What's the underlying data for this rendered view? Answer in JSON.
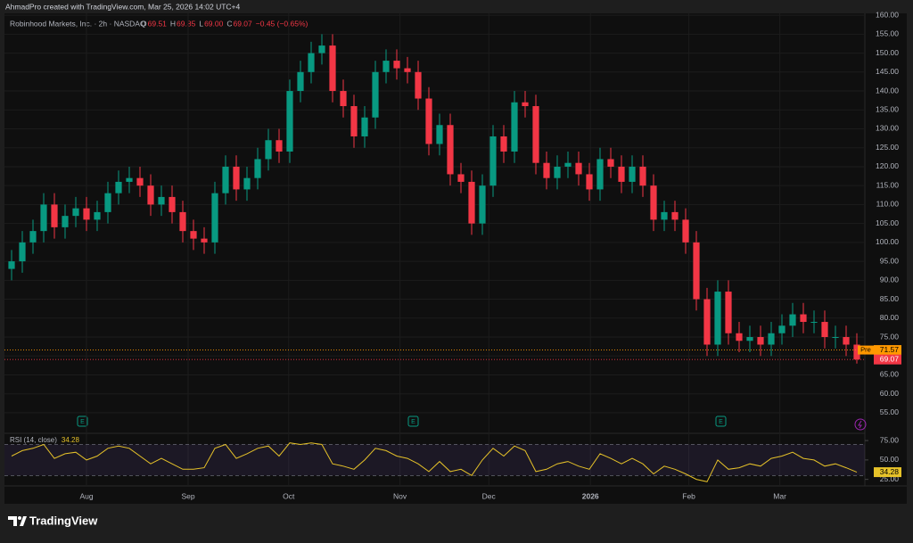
{
  "header": {
    "credit": "AhmadPro created with TradingView.com, Mar 25, 2026 14:02 UTC+4"
  },
  "chart_data": {
    "type": "candlestick",
    "legend": {
      "symbol": "Robinhood Markets, Inc. · 2h · NASDAQ",
      "labels": [
        "O",
        "H",
        "L",
        "C"
      ],
      "values": [
        "69.51",
        "69.85",
        "69.00",
        "69.07"
      ],
      "change": "−0.45 (−0.65%)"
    },
    "open": [
      93,
      95,
      100,
      103,
      110,
      104,
      107,
      109,
      106,
      108,
      113,
      116,
      117,
      115,
      110,
      112,
      108,
      103,
      101,
      100,
      113,
      120,
      114,
      117,
      122,
      127,
      124,
      140,
      145,
      150,
      152,
      140,
      136,
      128,
      133,
      145,
      148,
      146,
      145,
      138,
      126,
      131,
      118,
      116,
      105,
      115,
      128,
      124,
      137,
      136,
      121,
      117,
      120,
      121,
      118,
      114,
      122,
      120,
      116,
      120,
      115,
      106,
      108,
      106,
      100,
      85,
      73,
      87,
      76,
      74,
      75,
      73,
      76,
      78,
      81,
      79,
      79,
      75,
      75,
      73
    ],
    "high": [
      98,
      103,
      106,
      113,
      113,
      110,
      112,
      112,
      111,
      116,
      119,
      120,
      120,
      118,
      115,
      115,
      111,
      106,
      104,
      116,
      123,
      123,
      120,
      125,
      130,
      130,
      143,
      148,
      153,
      155,
      155,
      143,
      139,
      136,
      148,
      151,
      151,
      149,
      148,
      141,
      134,
      134,
      121,
      119,
      118,
      131,
      131,
      140,
      140,
      139,
      124,
      123,
      124,
      124,
      121,
      125,
      125,
      123,
      123,
      123,
      118,
      111,
      111,
      109,
      103,
      88,
      90,
      90,
      79,
      78,
      78,
      79,
      81,
      84,
      84,
      82,
      82,
      78,
      78,
      76
    ],
    "low": [
      90,
      92,
      97,
      100,
      101,
      101,
      104,
      103,
      103,
      105,
      110,
      113,
      112,
      107,
      107,
      105,
      100,
      98,
      97,
      97,
      110,
      111,
      111,
      114,
      119,
      121,
      121,
      137,
      142,
      147,
      137,
      133,
      125,
      125,
      130,
      142,
      143,
      142,
      135,
      123,
      123,
      115,
      113,
      102,
      102,
      112,
      121,
      121,
      133,
      118,
      114,
      114,
      117,
      115,
      111,
      111,
      117,
      113,
      113,
      112,
      103,
      103,
      103,
      97,
      82,
      70,
      70,
      73,
      71,
      71,
      70,
      70,
      73,
      75,
      76,
      76,
      72,
      72,
      70,
      68
    ],
    "close": [
      95,
      100,
      103,
      110,
      104,
      107,
      109,
      106,
      108,
      113,
      116,
      117,
      115,
      110,
      112,
      108,
      103,
      101,
      100,
      113,
      120,
      114,
      117,
      122,
      127,
      124,
      140,
      145,
      150,
      152,
      140,
      136,
      128,
      133,
      145,
      148,
      146,
      145,
      138,
      126,
      131,
      118,
      116,
      105,
      115,
      128,
      124,
      137,
      136,
      121,
      117,
      120,
      121,
      118,
      114,
      122,
      120,
      116,
      120,
      115,
      106,
      108,
      106,
      100,
      85,
      73,
      87,
      76,
      74,
      75,
      73,
      76,
      78,
      81,
      79,
      79,
      75,
      75,
      73,
      69.07
    ],
    "up_color": "#089981",
    "down_color": "#f23645",
    "xlim": [
      0,
      80
    ],
    "xticks": [
      {
        "value": 7.5,
        "label": "Aug"
      },
      {
        "value": 17,
        "label": "Sep"
      },
      {
        "value": 26.4,
        "label": "Oct"
      },
      {
        "value": 36.8,
        "label": "Nov"
      },
      {
        "value": 45.1,
        "label": "Dec"
      },
      {
        "value": 54.6,
        "label": "2026"
      },
      {
        "value": 63.8,
        "label": "Feb"
      },
      {
        "value": 72.3,
        "label": "Mar"
      }
    ],
    "ylim": [
      49.8,
      160.5
    ],
    "yticks": [
      {
        "value": 55,
        "label": "55.00"
      },
      {
        "value": 60,
        "label": "60.00"
      },
      {
        "value": 65,
        "label": "65.00"
      },
      {
        "value": 70,
        "label": "70.00"
      },
      {
        "value": 75,
        "label": "75.00"
      },
      {
        "value": 80,
        "label": "80.00"
      },
      {
        "value": 85,
        "label": "85.00"
      },
      {
        "value": 90,
        "label": "90.00"
      },
      {
        "value": 95,
        "label": "95.00"
      },
      {
        "value": 100,
        "label": "100.00"
      },
      {
        "value": 105,
        "label": "105.00"
      },
      {
        "value": 110,
        "label": "110.00"
      },
      {
        "value": 115,
        "label": "115.00"
      },
      {
        "value": 120,
        "label": "120.00"
      },
      {
        "value": 125,
        "label": "125.00"
      },
      {
        "value": 130,
        "label": "130.00"
      },
      {
        "value": 135,
        "label": "135.00"
      },
      {
        "value": 140,
        "label": "140.00"
      },
      {
        "value": 145,
        "label": "145.00"
      },
      {
        "value": 150,
        "label": "150.00"
      },
      {
        "value": 155,
        "label": "155.00"
      },
      {
        "value": 160,
        "label": "160.00"
      }
    ],
    "grid": true,
    "pre_market": {
      "label": "Pre",
      "value": 71.57,
      "color": "#ff9800"
    },
    "last_price": 69.07,
    "rsi": {
      "label": "RSI (14, close)",
      "color": "#e6c229",
      "values": [
        55,
        62,
        65,
        70,
        52,
        58,
        60,
        50,
        55,
        65,
        68,
        65,
        55,
        45,
        52,
        45,
        38,
        38,
        40,
        65,
        70,
        52,
        58,
        65,
        68,
        55,
        72,
        70,
        72,
        70,
        45,
        42,
        38,
        50,
        65,
        62,
        55,
        52,
        45,
        35,
        48,
        35,
        38,
        30,
        50,
        65,
        55,
        68,
        62,
        35,
        38,
        45,
        48,
        42,
        38,
        58,
        52,
        45,
        52,
        45,
        32,
        42,
        38,
        32,
        25,
        22,
        50,
        38,
        40,
        45,
        42,
        52,
        55,
        60,
        52,
        50,
        42,
        45,
        40,
        34.28
      ],
      "ylim": [
        20,
        82
      ],
      "yticks": [
        {
          "value": 25,
          "label": "25.00"
        },
        {
          "value": 50,
          "label": "50.00"
        },
        {
          "value": 75,
          "label": "75.00"
        }
      ],
      "band": [
        30,
        70
      ]
    }
  },
  "footer": {
    "brand": "TradingView"
  }
}
